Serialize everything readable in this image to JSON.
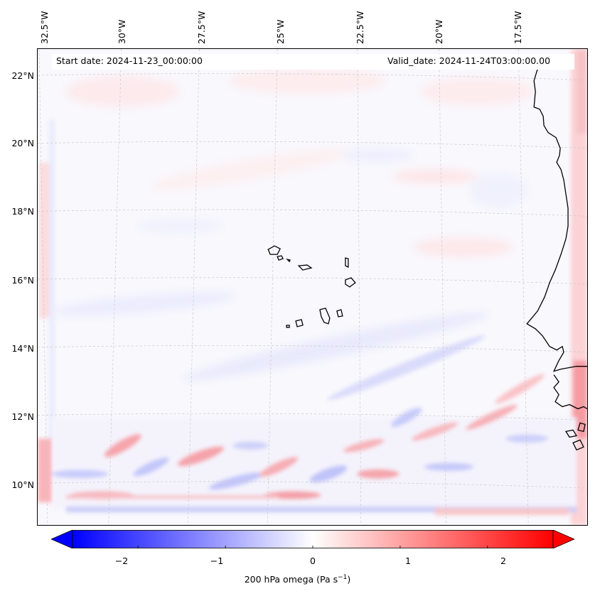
{
  "map": {
    "title_left": "Start date: 2024-11-23_00:00:00",
    "title_right": "Valid_date: 2024-11-24T03:00:00.00",
    "lon_labels": [
      "32.5°W",
      "30°W",
      "27.5°W",
      "25°W",
      "22.5°W",
      "20°W",
      "17.5°W"
    ],
    "lat_labels": [
      "22°N",
      "20°N",
      "18°N",
      "16°N",
      "14°N",
      "12°N",
      "10°N"
    ],
    "land_color": "#000000",
    "grid_color": "#c8c8c8"
  },
  "colorbar": {
    "label": "200 hPa omega (Pa s",
    "label_sup": "−1",
    "label_close": ")",
    "ticks": [
      "−2",
      "−1",
      "0",
      "1",
      "2"
    ],
    "tick_values": [
      -2,
      -1,
      0,
      1,
      2
    ],
    "range": [
      -2.75,
      2.75
    ],
    "color_low": "#0000ff",
    "color_mid": "#ffffff",
    "color_high": "#ff0000"
  }
}
